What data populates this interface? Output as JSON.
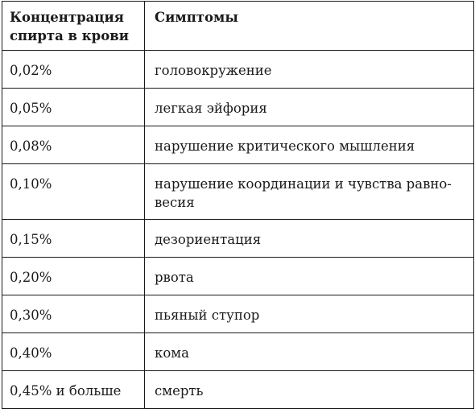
{
  "table": {
    "headers": [
      "Концентрация спирта в крови",
      "Симптомы"
    ],
    "rows": [
      {
        "concentration": "0,02%",
        "symptom": "головокружение"
      },
      {
        "concentration": "0,05%",
        "symptom": "легкая эйфория"
      },
      {
        "concentration": "0,08%",
        "symptom": "нарушение критического мышления"
      },
      {
        "concentration": "0,10%",
        "symptom": "нарушение координации и чувства равно-",
        "symptom_line2": "весия"
      },
      {
        "concentration": "0,15%",
        "symptom": "дезориентация"
      },
      {
        "concentration": "0,20%",
        "symptom": "рвота"
      },
      {
        "concentration": "0,30%",
        "symptom": "пьяный ступор"
      },
      {
        "concentration": "0,40%",
        "symptom": "кома"
      },
      {
        "concentration": "0,45% и больше",
        "symptom": "смерть"
      }
    ]
  }
}
